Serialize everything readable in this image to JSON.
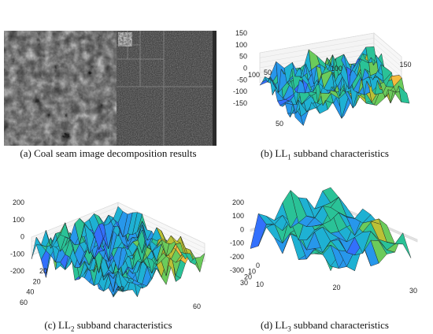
{
  "figure": {
    "panels": [
      {
        "id": "a",
        "caption": "(a)  Coal seam image decomposition results"
      },
      {
        "id": "b",
        "caption_prefix": "(b) LL",
        "caption_sub": "1",
        "caption_rest": " subband characteristics"
      },
      {
        "id": "c",
        "caption_prefix": "(c) LL",
        "caption_sub": "2",
        "caption_rest": " subband characteristics"
      },
      {
        "id": "d",
        "caption_prefix": "(d) LL",
        "caption_sub": "3",
        "caption_rest": " subband characteristics"
      }
    ]
  },
  "chart_data": [
    {
      "panel": "b",
      "type": "surface",
      "zticks": [
        "150",
        "100",
        "50",
        "0",
        "-50",
        "-100",
        "-150"
      ],
      "yticks": [
        "100",
        "50"
      ],
      "xticks": [
        "50",
        "100",
        "150"
      ],
      "zlim": [
        -150,
        150
      ],
      "xlim": [
        0,
        150
      ],
      "ylim": [
        0,
        150
      ],
      "grid": true
    },
    {
      "panel": "c",
      "type": "surface",
      "zticks": [
        "200",
        "100",
        "0",
        "-100",
        "-200"
      ],
      "yticks": [
        "60",
        "40",
        "20",
        "0"
      ],
      "xticks": [
        "20",
        "40",
        "60"
      ],
      "zlim": [
        -200,
        200
      ],
      "xlim": [
        0,
        60
      ],
      "ylim": [
        0,
        60
      ],
      "grid": true
    },
    {
      "panel": "d",
      "type": "surface",
      "zticks": [
        "200",
        "100",
        "0",
        "-100",
        "-200",
        "-300"
      ],
      "yticks": [
        "30",
        "20",
        "10",
        "0"
      ],
      "xticks": [
        "10",
        "20",
        "30"
      ],
      "zlim": [
        -300,
        200
      ],
      "xlim": [
        0,
        30
      ],
      "ylim": [
        0,
        30
      ],
      "grid": true
    }
  ]
}
